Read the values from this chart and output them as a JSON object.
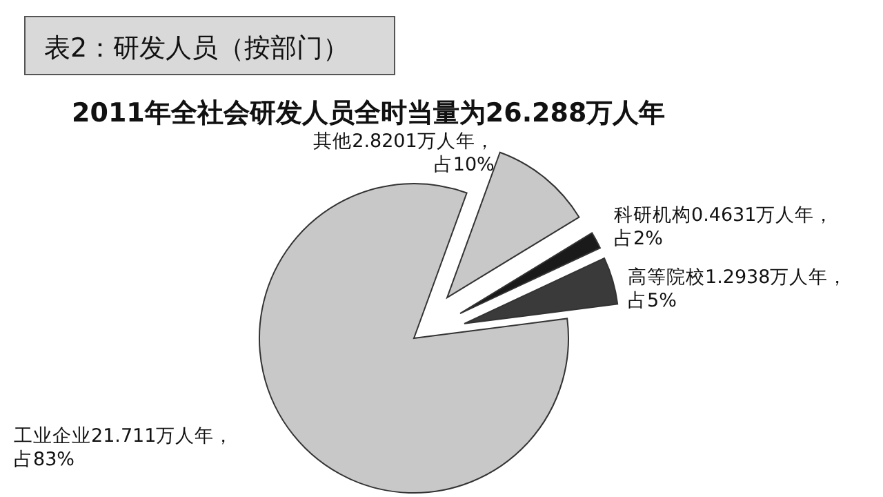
{
  "chart_data": {
    "type": "pie",
    "title": "表2：研发人员（按部门）",
    "subtitle": "2011年全社会研发人员全时当量为26.288万人年",
    "categories": [
      "其他2.8201万人年，占10%",
      "科研机构0.4631万人年，占2%",
      "高等院校1.2938万人年，占5%",
      "工业企业21.711万人年，占83%"
    ],
    "values": [
      2.8201,
      0.4631,
      1.2938,
      21.711
    ],
    "colors": [
      "#c8c8c8",
      "#1a1a1a",
      "#3a3a3a",
      "#c8c8c8"
    ]
  }
}
